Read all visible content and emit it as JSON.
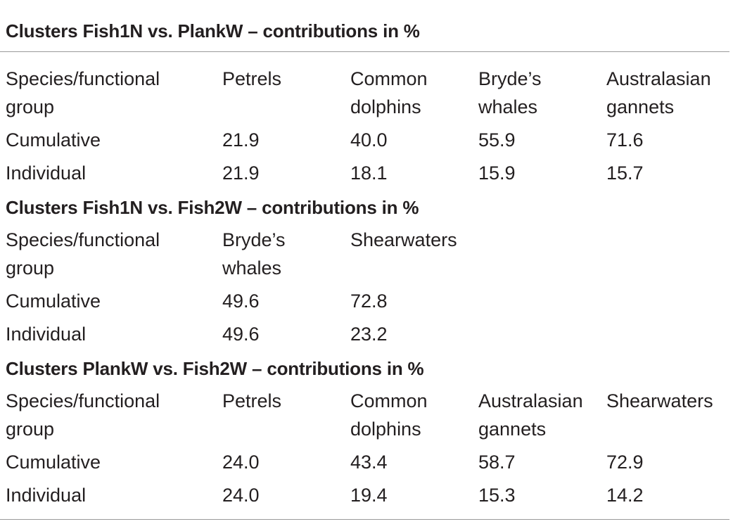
{
  "sections": [
    {
      "title": "Clusters Fish1N vs. PlankW – contributions in %",
      "header": [
        [
          "Species/functional",
          "group"
        ],
        [
          "Petrels"
        ],
        [
          "Common",
          "dolphins"
        ],
        [
          "Bryde’s",
          "whales"
        ],
        [
          "Australasian",
          "gannets"
        ]
      ],
      "rows": [
        [
          "Cumulative",
          "21.9",
          "40.0",
          "55.9",
          "71.6"
        ],
        [
          "Individual",
          "21.9",
          "18.1",
          "15.9",
          "15.7"
        ]
      ]
    },
    {
      "title": "Clusters Fish1N vs. Fish2W – contributions in %",
      "header": [
        [
          "Species/functional",
          "group"
        ],
        [
          "Bryde’s",
          "whales"
        ],
        [
          "Shearwaters"
        ]
      ],
      "rows": [
        [
          "Cumulative",
          "49.6",
          "72.8"
        ],
        [
          "Individual",
          "49.6",
          "23.2"
        ]
      ]
    },
    {
      "title": "Clusters PlankW vs. Fish2W – contributions in %",
      "header": [
        [
          "Species/functional",
          "group"
        ],
        [
          "Petrels"
        ],
        [
          "Common",
          "dolphins"
        ],
        [
          "Australasian",
          "gannets"
        ],
        [
          "Shearwaters"
        ]
      ],
      "rows": [
        [
          "Cumulative",
          "24.0",
          "43.4",
          "58.7",
          "72.9"
        ],
        [
          "Individual",
          "24.0",
          "19.4",
          "15.3",
          "14.2"
        ]
      ]
    }
  ]
}
